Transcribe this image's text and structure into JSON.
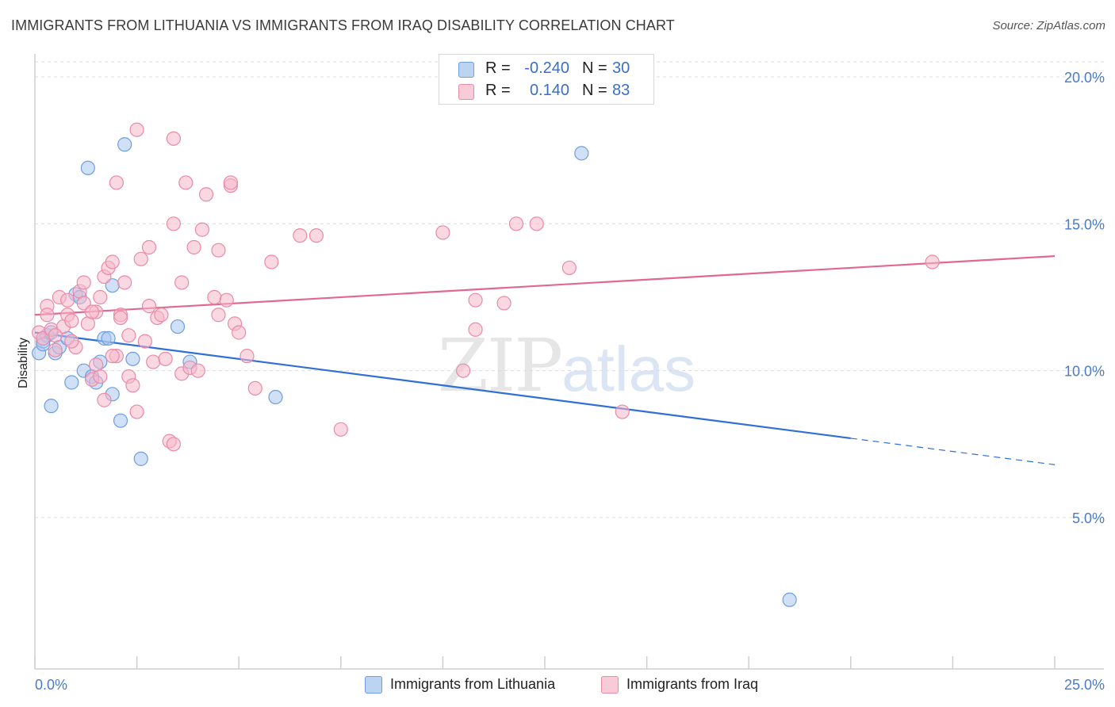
{
  "title": "IMMIGRANTS FROM LITHUANIA VS IMMIGRANTS FROM IRAQ DISABILITY CORRELATION CHART",
  "source": "Source: ZipAtlas.com",
  "watermark": {
    "zip": "ZIP",
    "atlas": "atlas"
  },
  "legend": {
    "rows": [
      {
        "r_label": "R =",
        "r_value": "-0.240",
        "n_label": "N =",
        "n_value": "30",
        "color": "#a9c6ee"
      },
      {
        "r_label": "R =",
        "r_value": "0.140",
        "n_label": "N =",
        "n_value": "83",
        "color": "#f6b8cb"
      }
    ]
  },
  "bottom_legend": [
    {
      "label": "Immigrants from Lithuania",
      "color": "#a9c6ee"
    },
    {
      "label": "Immigrants from Iraq",
      "color": "#f6b8cb"
    }
  ],
  "chart_data": {
    "type": "scatter",
    "title": "IMMIGRANTS FROM LITHUANIA VS IMMIGRANTS FROM IRAQ DISABILITY CORRELATION CHART",
    "xlabel": "",
    "ylabel": "Disability",
    "xlim": [
      0,
      25
    ],
    "ylim": [
      0,
      21
    ],
    "x_tick_labels": [
      "0.0%",
      "25.0%"
    ],
    "y_ticks": [
      5,
      10,
      15,
      20
    ],
    "y_tick_labels": [
      "5.0%",
      "10.0%",
      "15.0%",
      "20.0%"
    ],
    "grid": true,
    "legend_position": "top-center",
    "series": [
      {
        "name": "Immigrants from Lithuania",
        "color": "#a9c6ee",
        "stroke": "#6f9ee0",
        "trend_color": "#2f6fd6",
        "trend": {
          "x0": 0,
          "y0": 11.3,
          "x1": 20,
          "y1": 7.7,
          "dashed_to_x": 25,
          "dashed_to_y": 6.8
        },
        "points": [
          [
            0.1,
            10.6
          ],
          [
            0.2,
            11.0
          ],
          [
            0.3,
            11.2
          ],
          [
            0.4,
            11.3
          ],
          [
            0.5,
            10.6
          ],
          [
            0.6,
            10.8
          ],
          [
            0.8,
            11.1
          ],
          [
            0.9,
            9.6
          ],
          [
            0.4,
            8.8
          ],
          [
            1.0,
            12.6
          ],
          [
            1.1,
            12.5
          ],
          [
            1.2,
            10.0
          ],
          [
            1.4,
            9.8
          ],
          [
            1.5,
            9.6
          ],
          [
            1.6,
            10.3
          ],
          [
            1.7,
            11.1
          ],
          [
            1.8,
            11.1
          ],
          [
            1.9,
            9.2
          ],
          [
            1.9,
            12.9
          ],
          [
            2.1,
            8.3
          ],
          [
            2.2,
            17.7
          ],
          [
            2.4,
            10.4
          ],
          [
            2.6,
            7.0
          ],
          [
            1.3,
            16.9
          ],
          [
            3.5,
            11.5
          ],
          [
            3.8,
            10.3
          ],
          [
            5.9,
            9.1
          ],
          [
            13.4,
            17.4
          ],
          [
            18.5,
            2.2
          ],
          [
            0.2,
            10.9
          ]
        ]
      },
      {
        "name": "Immigrants from Iraq",
        "color": "#f6b8cb",
        "stroke": "#e98aa9",
        "trend_color": "#e06893",
        "trend": {
          "x0": 0,
          "y0": 11.9,
          "x1": 25,
          "y1": 13.9
        },
        "points": [
          [
            0.1,
            11.3
          ],
          [
            0.2,
            11.1
          ],
          [
            0.3,
            12.2
          ],
          [
            0.4,
            11.4
          ],
          [
            0.5,
            10.7
          ],
          [
            0.6,
            12.5
          ],
          [
            0.7,
            11.5
          ],
          [
            0.8,
            12.4
          ],
          [
            0.8,
            11.9
          ],
          [
            0.9,
            11.7
          ],
          [
            1.0,
            10.8
          ],
          [
            1.1,
            12.7
          ],
          [
            1.2,
            13.0
          ],
          [
            1.2,
            12.3
          ],
          [
            1.3,
            11.6
          ],
          [
            1.4,
            9.7
          ],
          [
            1.5,
            10.2
          ],
          [
            1.5,
            12.0
          ],
          [
            1.6,
            12.5
          ],
          [
            1.6,
            9.8
          ],
          [
            1.7,
            13.2
          ],
          [
            1.7,
            9.0
          ],
          [
            1.8,
            13.5
          ],
          [
            1.9,
            13.7
          ],
          [
            2.0,
            10.5
          ],
          [
            2.1,
            11.9
          ],
          [
            2.1,
            11.8
          ],
          [
            2.2,
            13.0
          ],
          [
            2.3,
            9.8
          ],
          [
            2.4,
            9.5
          ],
          [
            2.5,
            8.6
          ],
          [
            2.6,
            13.8
          ],
          [
            2.7,
            11.0
          ],
          [
            2.8,
            12.2
          ],
          [
            2.8,
            14.2
          ],
          [
            2.9,
            10.3
          ],
          [
            3.0,
            11.8
          ],
          [
            3.1,
            11.9
          ],
          [
            3.2,
            10.4
          ],
          [
            3.3,
            7.6
          ],
          [
            3.4,
            15.0
          ],
          [
            3.4,
            7.5
          ],
          [
            3.6,
            13.0
          ],
          [
            3.6,
            9.9
          ],
          [
            3.8,
            10.1
          ],
          [
            3.9,
            14.2
          ],
          [
            4.0,
            10.0
          ],
          [
            4.1,
            14.8
          ],
          [
            4.2,
            16.0
          ],
          [
            4.4,
            12.5
          ],
          [
            4.5,
            14.1
          ],
          [
            4.5,
            11.9
          ],
          [
            4.7,
            12.4
          ],
          [
            4.8,
            16.3
          ],
          [
            4.8,
            16.4
          ],
          [
            4.9,
            11.6
          ],
          [
            5.0,
            11.3
          ],
          [
            5.2,
            10.5
          ],
          [
            5.4,
            9.4
          ],
          [
            5.8,
            13.7
          ],
          [
            2.5,
            18.2
          ],
          [
            3.4,
            17.9
          ],
          [
            3.7,
            16.4
          ],
          [
            2.0,
            16.4
          ],
          [
            6.5,
            14.6
          ],
          [
            6.9,
            14.6
          ],
          [
            7.5,
            8.0
          ],
          [
            10.0,
            14.7
          ],
          [
            10.5,
            10.0
          ],
          [
            10.8,
            11.4
          ],
          [
            10.8,
            12.4
          ],
          [
            11.5,
            12.3
          ],
          [
            11.8,
            15.0
          ],
          [
            12.3,
            15.0
          ],
          [
            13.1,
            13.5
          ],
          [
            14.4,
            8.6
          ],
          [
            22.0,
            13.7
          ],
          [
            0.3,
            11.9
          ],
          [
            0.5,
            11.2
          ],
          [
            0.9,
            11.0
          ],
          [
            1.4,
            12.0
          ],
          [
            1.9,
            10.5
          ],
          [
            2.3,
            11.2
          ]
        ]
      }
    ]
  }
}
